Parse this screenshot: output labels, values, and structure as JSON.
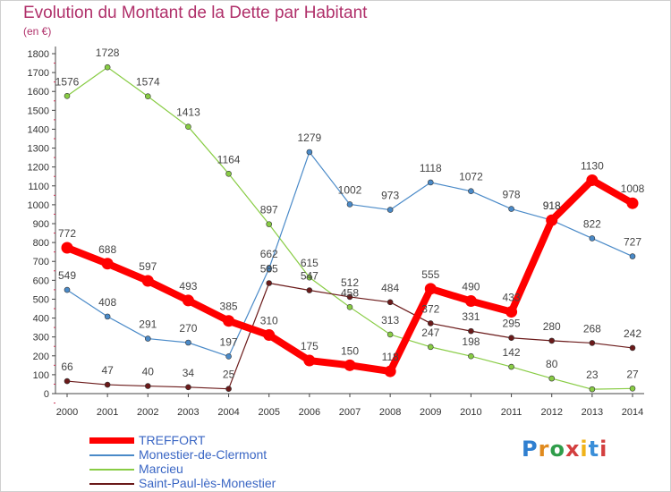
{
  "title": "Evolution du Montant de la Dette par Habitant",
  "subtitle": "(en €)",
  "logo_text": "Proxiti",
  "chart_data": {
    "type": "line",
    "x": [
      "2000",
      "2001",
      "2002",
      "2003",
      "2004",
      "2005",
      "2006",
      "2007",
      "2008",
      "2009",
      "2010",
      "2011",
      "2012",
      "2013",
      "2014"
    ],
    "ylim": [
      0,
      1800
    ],
    "yticks": [
      0,
      100,
      200,
      300,
      400,
      500,
      600,
      700,
      800,
      900,
      1000,
      1100,
      1200,
      1300,
      1400,
      1500,
      1600,
      1700,
      1800
    ],
    "grid": false,
    "legend_position": "bottom-left",
    "series": [
      {
        "name": "TREFFORT",
        "color": "#ff0000",
        "values": [
          772,
          688,
          597,
          493,
          385,
          310,
          175,
          150,
          118,
          555,
          490,
          433,
          918,
          1130,
          1008
        ]
      },
      {
        "name": "Monestier-de-Clermont",
        "color": "#4a8ac8",
        "values": [
          549,
          408,
          291,
          270,
          197,
          662,
          1279,
          1002,
          973,
          1118,
          1072,
          978,
          918,
          822,
          727
        ]
      },
      {
        "name": "Marcieu",
        "color": "#88cc44",
        "values": [
          1576,
          1728,
          1574,
          1413,
          1164,
          897,
          615,
          458,
          313,
          247,
          198,
          142,
          80,
          23,
          27
        ]
      },
      {
        "name": "Saint-Paul-lès-Monestier",
        "color": "#6b1a1a",
        "values": [
          66,
          47,
          40,
          34,
          25,
          585,
          547,
          512,
          484,
          372,
          331,
          295,
          280,
          268,
          242
        ]
      }
    ]
  }
}
